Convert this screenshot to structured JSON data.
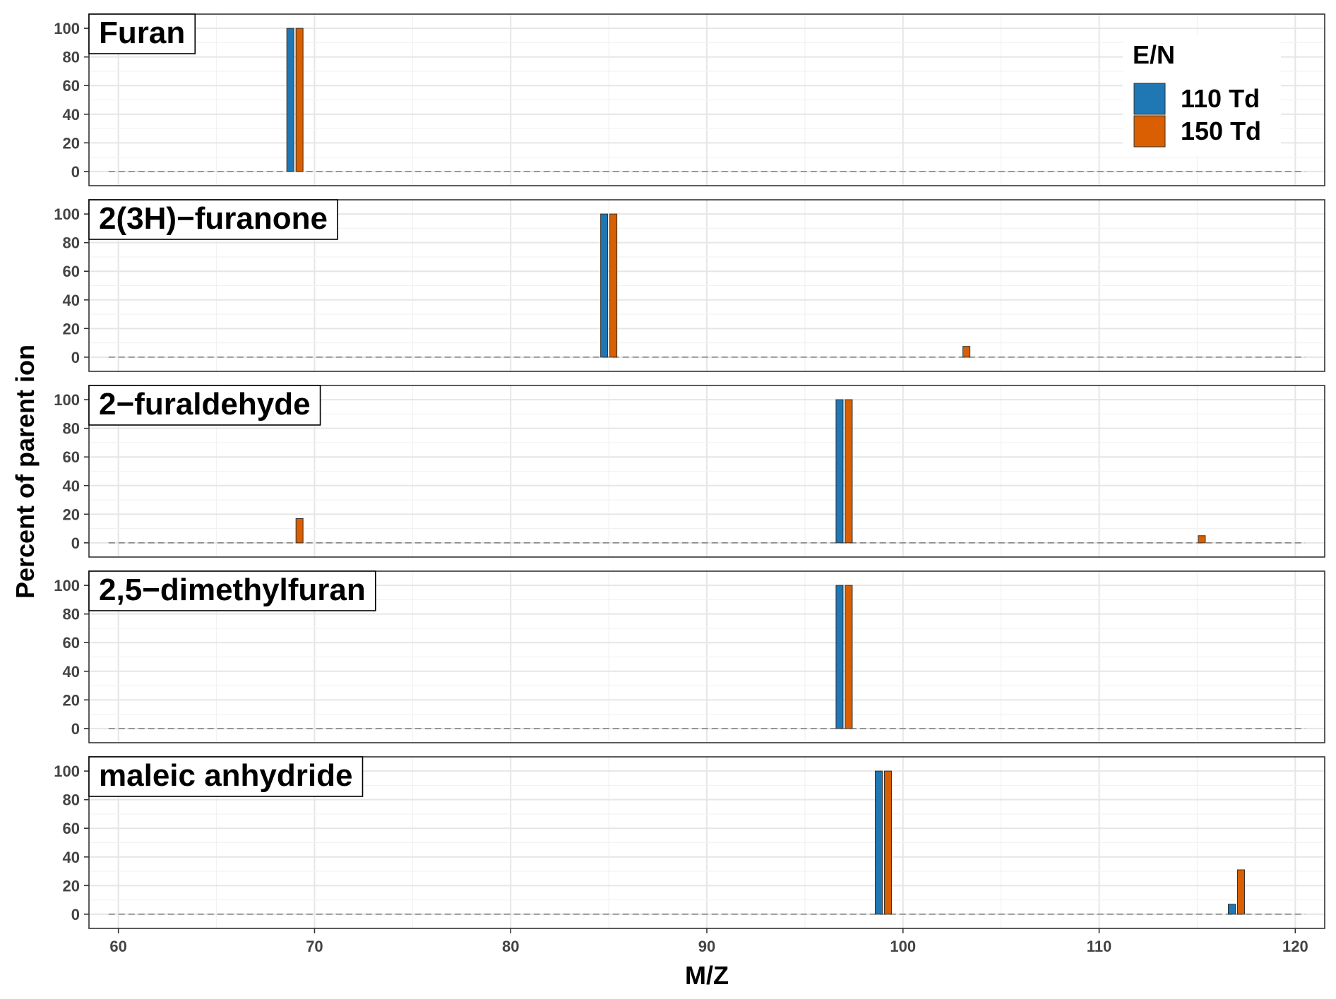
{
  "chart_data": {
    "type": "bar",
    "xlabel": "M/Z",
    "ylabel": "Percent of parent ion",
    "xlim": [
      58.5,
      121.5
    ],
    "ylim": [
      -5,
      105
    ],
    "x_ticks": [
      60,
      70,
      80,
      90,
      100,
      110,
      120
    ],
    "y_ticks": [
      0,
      20,
      40,
      60,
      80,
      100
    ],
    "grid": true,
    "legend": {
      "title": "E/N",
      "position": "top-right",
      "entries": [
        {
          "label": "110 Td",
          "color": "#1f77b4"
        },
        {
          "label": "150 Td",
          "color": "#d95f02"
        }
      ]
    },
    "series_colors": {
      "110 Td": "#1f77b4",
      "150 Td": "#d95f02"
    },
    "panels": [
      {
        "label": "Furan",
        "bars": [
          {
            "series": "110 Td",
            "x": 69,
            "y": 100
          },
          {
            "series": "150 Td",
            "x": 69,
            "y": 100
          }
        ]
      },
      {
        "label": "2(3H)−furanone",
        "bars": [
          {
            "series": "110 Td",
            "x": 85,
            "y": 100
          },
          {
            "series": "150 Td",
            "x": 85,
            "y": 100
          },
          {
            "series": "150 Td",
            "x": 103,
            "y": 7.5
          }
        ]
      },
      {
        "label": "2−furaldehyde",
        "bars": [
          {
            "series": "150 Td",
            "x": 69,
            "y": 17
          },
          {
            "series": "110 Td",
            "x": 97,
            "y": 100
          },
          {
            "series": "150 Td",
            "x": 97,
            "y": 100
          },
          {
            "series": "150 Td",
            "x": 115,
            "y": 5
          }
        ]
      },
      {
        "label": "2,5−dimethylfuran",
        "bars": [
          {
            "series": "110 Td",
            "x": 97,
            "y": 100
          },
          {
            "series": "150 Td",
            "x": 97,
            "y": 100
          }
        ]
      },
      {
        "label": "maleic anhydride",
        "bars": [
          {
            "series": "110 Td",
            "x": 99,
            "y": 100
          },
          {
            "series": "150 Td",
            "x": 99,
            "y": 100
          },
          {
            "series": "110 Td",
            "x": 117,
            "y": 7
          },
          {
            "series": "150 Td",
            "x": 117,
            "y": 31
          }
        ]
      }
    ]
  }
}
